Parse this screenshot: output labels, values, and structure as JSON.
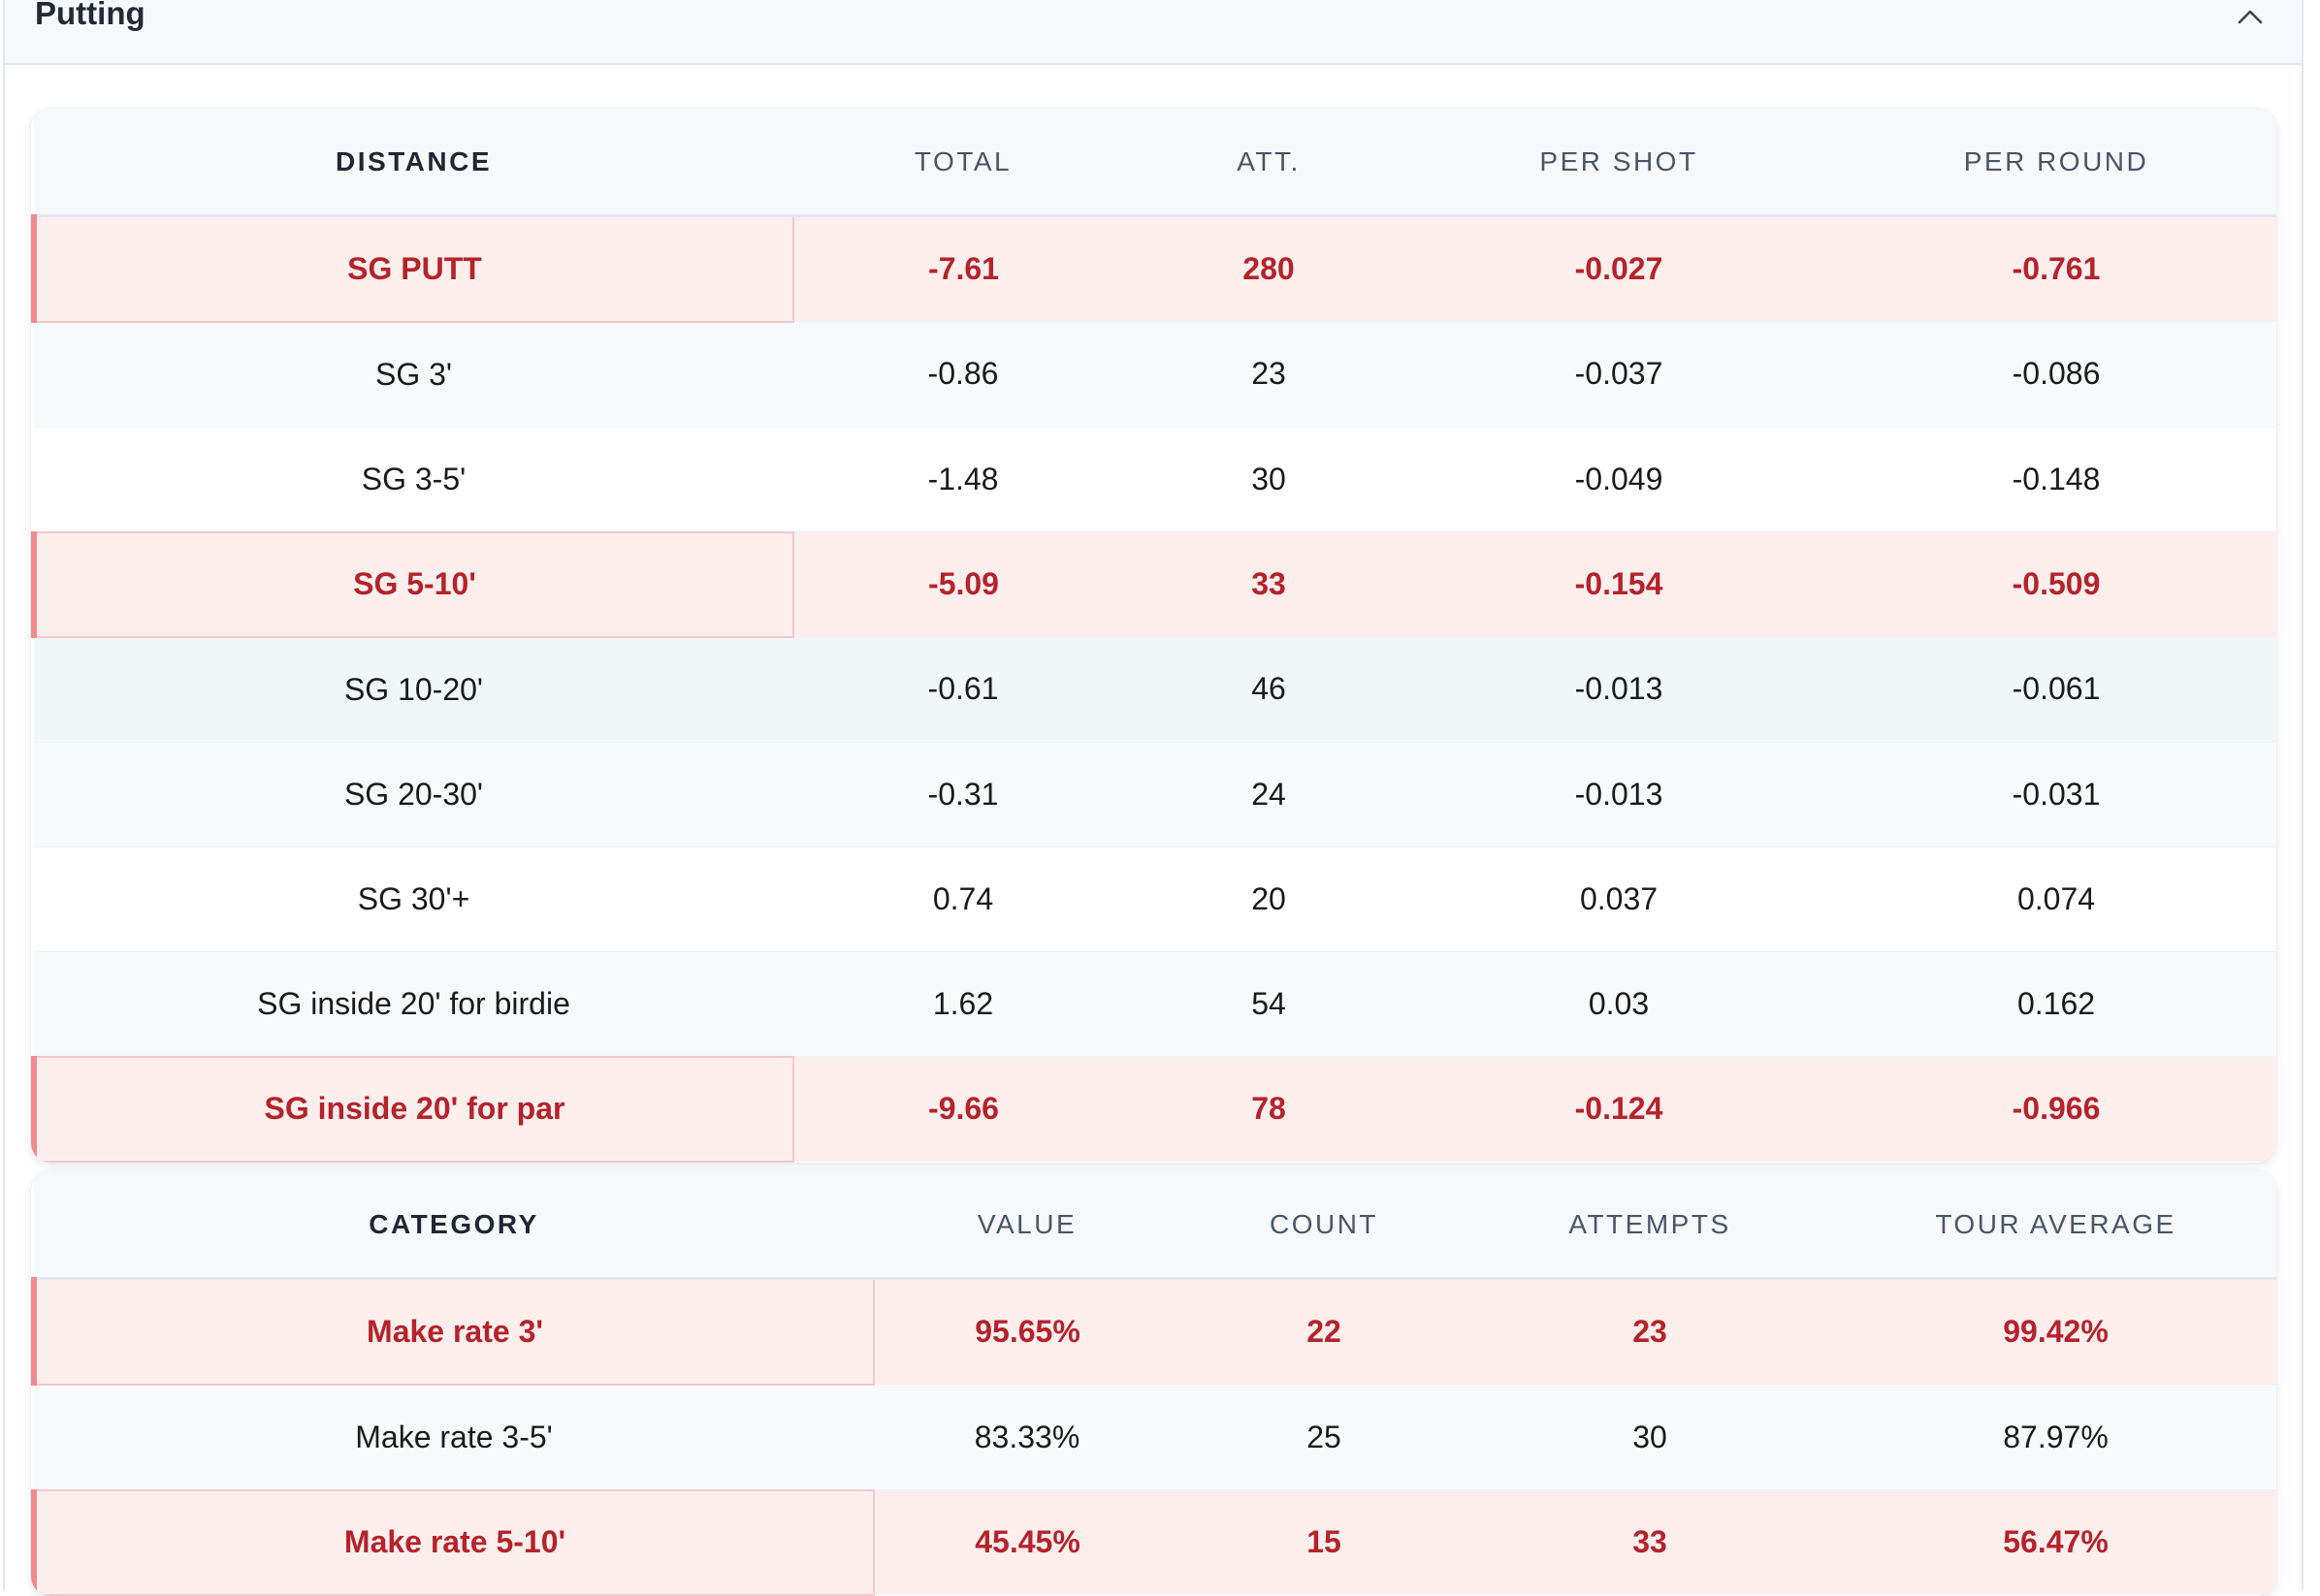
{
  "section": {
    "title": "Putting"
  },
  "distance_table": {
    "columns": [
      "DISTANCE",
      "TOTAL",
      "ATT.",
      "PER SHOT",
      "PER ROUND"
    ],
    "rows": [
      {
        "cells": [
          "SG PUTT",
          "-7.61",
          "280",
          "-0.027",
          "-0.761"
        ],
        "highlight": true
      },
      {
        "cells": [
          "SG 3'",
          "-0.86",
          "23",
          "-0.037",
          "-0.086"
        ],
        "highlight": false
      },
      {
        "cells": [
          "SG 3-5'",
          "-1.48",
          "30",
          "-0.049",
          "-0.148"
        ],
        "highlight": false
      },
      {
        "cells": [
          "SG 5-10'",
          "-5.09",
          "33",
          "-0.154",
          "-0.509"
        ],
        "highlight": true
      },
      {
        "cells": [
          "SG 10-20'",
          "-0.61",
          "46",
          "-0.013",
          "-0.061"
        ],
        "highlight": false
      },
      {
        "cells": [
          "SG 20-30'",
          "-0.31",
          "24",
          "-0.013",
          "-0.031"
        ],
        "highlight": false
      },
      {
        "cells": [
          "SG 30'+",
          "0.74",
          "20",
          "0.037",
          "0.074"
        ],
        "highlight": false
      },
      {
        "cells": [
          "SG inside 20' for birdie",
          "1.62",
          "54",
          "0.03",
          "0.162"
        ],
        "highlight": false
      },
      {
        "cells": [
          "SG inside 20' for par",
          "-9.66",
          "78",
          "-0.124",
          "-0.966"
        ],
        "highlight": true
      }
    ]
  },
  "make_rate_table": {
    "columns": [
      "CATEGORY",
      "VALUE",
      "COUNT",
      "ATTEMPTS",
      "TOUR AVERAGE"
    ],
    "rows": [
      {
        "cells": [
          "Make rate 3'",
          "95.65%",
          "22",
          "23",
          "99.42%"
        ],
        "highlight": true
      },
      {
        "cells": [
          "Make rate 3-5'",
          "83.33%",
          "25",
          "30",
          "87.97%"
        ],
        "highlight": false
      },
      {
        "cells": [
          "Make rate 5-10'",
          "45.45%",
          "15",
          "33",
          "56.47%"
        ],
        "highlight": true
      }
    ]
  },
  "colors": {
    "highlight_text": "#b4232b",
    "highlight_background": "#fdeeee",
    "highlight_accent": "#ef8b8f"
  }
}
